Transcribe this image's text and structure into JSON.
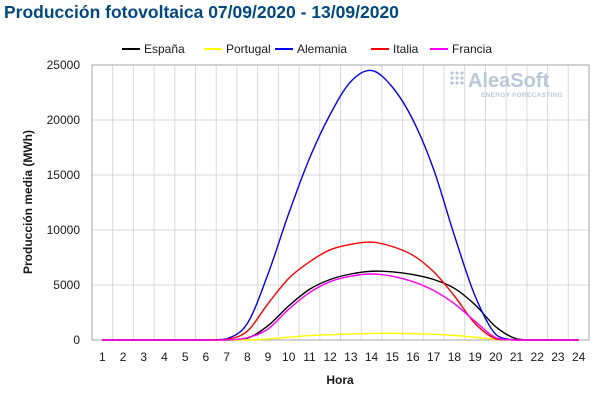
{
  "title": "Producción fotovoltaica 07/09/2020 - 13/09/2020",
  "watermark": {
    "name": "AleaSoft",
    "tagline": "ENERGY FORECASTING",
    "color": "#b8c9dc"
  },
  "chart_data": {
    "type": "line",
    "title": "Producción fotovoltaica 07/09/2020 - 13/09/2020",
    "xlabel": "Hora",
    "ylabel": "Producción media (MWh)",
    "x": [
      1,
      2,
      3,
      4,
      5,
      6,
      7,
      8,
      9,
      10,
      11,
      12,
      13,
      14,
      15,
      16,
      17,
      18,
      19,
      20,
      21,
      22,
      23,
      24
    ],
    "xticks": [
      "1",
      "2",
      "3",
      "4",
      "5",
      "6",
      "7",
      "8",
      "9",
      "10",
      "11",
      "12",
      "13",
      "14",
      "15",
      "16",
      "17",
      "18",
      "19",
      "20",
      "21",
      "22",
      "23",
      "24"
    ],
    "ylim": [
      0,
      25000
    ],
    "yticks": [
      "0",
      "5000",
      "10000",
      "15000",
      "20000",
      "25000"
    ],
    "yticks_values": [
      0,
      5000,
      10000,
      15000,
      20000,
      25000
    ],
    "grid": true,
    "legend_position": "top",
    "series": [
      {
        "name": "España",
        "color": "#000000",
        "values": [
          0,
          0,
          0,
          0,
          0,
          0,
          0,
          150,
          1300,
          3100,
          4600,
          5500,
          6000,
          6250,
          6200,
          5950,
          5500,
          4700,
          3200,
          1200,
          100,
          0,
          0,
          0
        ]
      },
      {
        "name": "Portugal",
        "color": "#ffff00",
        "values": [
          0,
          0,
          0,
          0,
          0,
          0,
          0,
          0,
          100,
          250,
          400,
          480,
          550,
          600,
          610,
          570,
          520,
          420,
          250,
          70,
          0,
          0,
          0,
          0
        ]
      },
      {
        "name": "Alemania",
        "color": "#0000ff",
        "values": [
          0,
          0,
          0,
          0,
          0,
          0,
          100,
          1500,
          6000,
          11500,
          16500,
          20500,
          23500,
          24500,
          23000,
          20000,
          15500,
          9500,
          4000,
          500,
          0,
          0,
          0,
          0
        ]
      },
      {
        "name": "Italia",
        "color": "#ff0000",
        "values": [
          0,
          0,
          0,
          0,
          0,
          0,
          50,
          800,
          3300,
          5600,
          7100,
          8200,
          8700,
          8900,
          8500,
          7700,
          6200,
          4000,
          1500,
          100,
          0,
          0,
          0,
          0
        ]
      },
      {
        "name": "Francia",
        "color": "#ff00ff",
        "values": [
          0,
          0,
          0,
          0,
          0,
          0,
          0,
          200,
          1000,
          2800,
          4300,
          5300,
          5800,
          6000,
          5800,
          5300,
          4500,
          3300,
          1700,
          200,
          0,
          0,
          0,
          0
        ]
      }
    ]
  }
}
